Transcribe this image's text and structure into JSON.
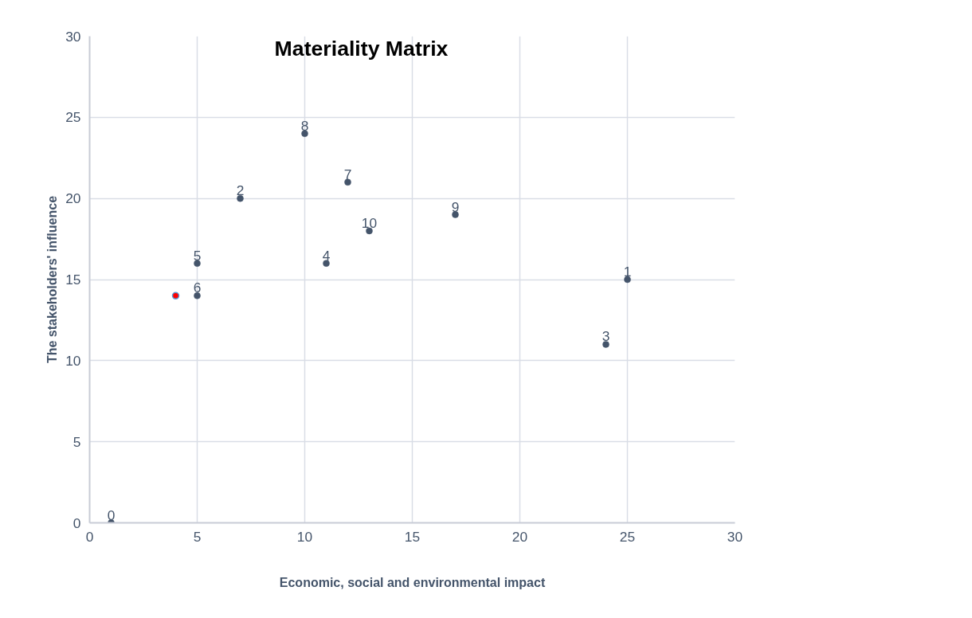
{
  "chart_data": {
    "type": "scatter",
    "title": "Materiality Matrix",
    "xlabel": "Economic, social and environmental impact",
    "ylabel": "The stakeholders' influence",
    "xlim": [
      0,
      30
    ],
    "xticks": [
      0,
      5,
      10,
      15,
      20,
      25,
      30
    ],
    "ylim": [
      0,
      30
    ],
    "yticks": [
      0,
      5,
      10,
      15,
      20,
      25,
      30
    ],
    "grid": true,
    "series": [
      {
        "color": "#44546a",
        "marker": "circle",
        "x": [
          1,
          25,
          7,
          24,
          11,
          5,
          5,
          12,
          10,
          17,
          13
        ],
        "values": [
          0,
          15,
          20,
          11,
          16,
          16,
          14,
          21,
          24,
          19,
          18
        ]
      },
      {
        "color": "#ff0000",
        "marker": "circle",
        "x": [
          4
        ],
        "values": [
          14
        ]
      }
    ],
    "annotations": [
      {
        "text": "0",
        "x": 1,
        "y": 0
      },
      {
        "text": "1",
        "x": 25,
        "y": 15
      },
      {
        "text": "2",
        "x": 7,
        "y": 20
      },
      {
        "text": "3",
        "x": 24,
        "y": 11
      },
      {
        "text": "4",
        "x": 11,
        "y": 16
      },
      {
        "text": "5",
        "x": 5,
        "y": 16
      },
      {
        "text": "6",
        "x": 5,
        "y": 14
      },
      {
        "text": "7",
        "x": 12,
        "y": 21
      },
      {
        "text": "8",
        "x": 10,
        "y": 24
      },
      {
        "text": "9",
        "x": 17,
        "y": 19
      },
      {
        "text": "10",
        "x": 13,
        "y": 18
      }
    ]
  }
}
